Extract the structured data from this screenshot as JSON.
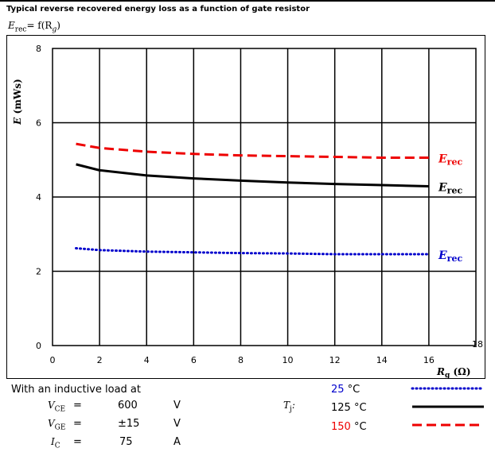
{
  "header": {
    "title": "Typical reverse recovered energy loss as a function of gate resistor",
    "formula_lhs": "E",
    "formula_lhs_sub": "rec",
    "formula_rhs": "= f(R",
    "formula_rhs_sub": "g",
    "formula_close": ")"
  },
  "chart_data": {
    "type": "line",
    "title": "Typical reverse recovered energy loss as a function of gate resistor",
    "xlabel_main": "R",
    "xlabel_sub": "g",
    "xlabel_unit": " (Ω)",
    "ylabel_main": "E",
    "ylabel_unit": " (mWs)",
    "xlim": [
      0,
      18
    ],
    "ylim": [
      0,
      8
    ],
    "xticks": [
      0,
      2,
      4,
      6,
      8,
      10,
      12,
      14,
      16,
      18
    ],
    "yticks": [
      0,
      2,
      4,
      6,
      8
    ],
    "grid": true,
    "series": [
      {
        "name": "E",
        "name_sub": "rec",
        "temperature": "25",
        "color": "#0000cc",
        "style": "dotted",
        "x": [
          1,
          2,
          4,
          6,
          8,
          10,
          12,
          14,
          16
        ],
        "y": [
          2.62,
          2.57,
          2.53,
          2.51,
          2.49,
          2.48,
          2.46,
          2.46,
          2.46
        ]
      },
      {
        "name": "E",
        "name_sub": "rec",
        "temperature": "125",
        "color": "#000000",
        "style": "solid",
        "x": [
          1,
          2,
          4,
          6,
          8,
          10,
          12,
          14,
          16
        ],
        "y": [
          4.88,
          4.72,
          4.58,
          4.5,
          4.44,
          4.39,
          4.35,
          4.32,
          4.29
        ]
      },
      {
        "name": "E",
        "name_sub": "rec",
        "temperature": "150",
        "color": "#ee0000",
        "style": "dashed",
        "x": [
          1,
          2,
          4,
          6,
          8,
          10,
          12,
          14,
          16
        ],
        "y": [
          5.43,
          5.32,
          5.22,
          5.16,
          5.12,
          5.1,
          5.08,
          5.06,
          5.06
        ]
      }
    ]
  },
  "footer": {
    "intro": "With an inductive load at",
    "params": [
      {
        "sym": "V",
        "sub": "CE",
        "eq": "=",
        "value": "600",
        "unit": "V"
      },
      {
        "sym": "V",
        "sub": "GE",
        "eq": "=",
        "value": "±15",
        "unit": "V"
      },
      {
        "sym": "I",
        "sub": "C",
        "eq": "=",
        "value": "75",
        "unit": "A"
      }
    ],
    "tj_sym": "T",
    "tj_sub": "j",
    "tj_colon": ":",
    "temp_unit": " °C"
  }
}
